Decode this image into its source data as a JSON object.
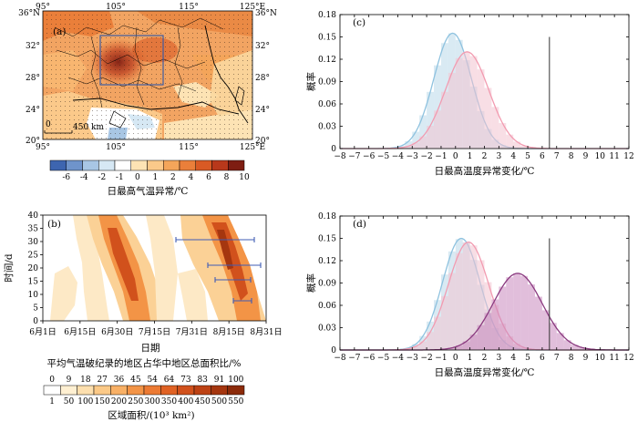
{
  "colors": {
    "hist_c_blue": "#b9d8ea",
    "hist_c_pink": "#f3c3cf",
    "hist_d_purple": "#c889be",
    "curve_blue": "#8ec2df",
    "curve_pink": "#f29bb0",
    "curve_purple": "#8a3a7f",
    "threshold_line": "#333333",
    "scale_warm": [
      "#fde3b4",
      "#fbc98a",
      "#f4a55a",
      "#ea7f3a",
      "#d95a24",
      "#b8381b",
      "#7e1d12"
    ],
    "scale_cool": [
      "#3d65b0",
      "#6f94cb",
      "#a8c6e4",
      "#d6e8f4"
    ],
    "scale_hov": [
      "#ffffff",
      "#fff0d2",
      "#fddfae",
      "#fbc987",
      "#f8b065",
      "#f39446",
      "#ec7a33",
      "#e06224",
      "#d1511c",
      "#bd4214",
      "#a5360f",
      "#8c2b0a"
    ]
  },
  "panel_a": {
    "label": "(a)",
    "lon_top": [
      "95°",
      "105°",
      "115°",
      "125°E"
    ],
    "lon_bottom": [
      "95°",
      "105°",
      "115°",
      "125°E"
    ],
    "lat_left": [
      "36°N",
      "32°",
      "28°",
      "24°",
      "20°"
    ],
    "lat_right": [
      "36°N",
      "32°",
      "28°",
      "24°",
      "20°"
    ],
    "scale_bar_zero": "0",
    "scale_bar_label": "450 km",
    "colorbar_ticks": [
      "-6",
      "-4",
      "-2",
      "-1",
      "0",
      "1",
      "2",
      "4",
      "6",
      "8",
      "10"
    ],
    "colorbar_title": "日最高气温异常/℃"
  },
  "panel_b": {
    "label": "(b)",
    "ylabel": "时间/d",
    "xlabel": "日期",
    "yticks": [
      "0",
      "5",
      "10",
      "15",
      "20",
      "25",
      "30",
      "35",
      "40"
    ],
    "xticks": [
      "6月1日",
      "6月15日",
      "6月30日",
      "7月15日",
      "7月31日",
      "8月15日",
      "8月31日"
    ],
    "colorbar_title1": "平均气温破纪录的地区占华中地区总面积比/%",
    "colorbar_ticks1": [
      "0",
      "9",
      "18",
      "27",
      "36",
      "45",
      "54",
      "64",
      "73",
      "83",
      "91",
      "100"
    ],
    "colorbar_ticks2": [
      "1",
      "50",
      "100",
      "150",
      "200",
      "250",
      "300",
      "350",
      "400",
      "450",
      "500",
      "550"
    ],
    "colorbar_title2": "区域面积/(10³ km²)"
  },
  "chart_data": [
    {
      "panel": "(c)",
      "type": "area",
      "ylabel": "概率",
      "xlabel": "日最高温度异常变化/℃",
      "xlim": [
        -8,
        12
      ],
      "ylim": [
        0,
        0.18
      ],
      "xticks": [
        "−8",
        "−7",
        "−6",
        "−5",
        "−4",
        "−3",
        "−2",
        "−1",
        "0",
        "1",
        "2",
        "3",
        "4",
        "5",
        "6",
        "7",
        "8",
        "9",
        "10",
        "11",
        "12"
      ],
      "yticks": [
        "0",
        "0.03",
        "0.06",
        "0.09",
        "0.12",
        "0.15",
        "0.18"
      ],
      "vline_x": 6.5,
      "series": [
        {
          "color": "blue",
          "mean": -0.2,
          "sd": 1.3,
          "peak": 0.155
        },
        {
          "color": "pink",
          "mean": 0.8,
          "sd": 1.5,
          "peak": 0.13
        }
      ]
    },
    {
      "panel": "(d)",
      "type": "area",
      "ylabel": "概率",
      "xlabel": "日最高温度异常变化/℃",
      "xlim": [
        -8,
        12
      ],
      "ylim": [
        0,
        0.18
      ],
      "xticks": [
        "−8",
        "−7",
        "−6",
        "−5",
        "−4",
        "−3",
        "−2",
        "−1",
        "0",
        "1",
        "2",
        "3",
        "4",
        "5",
        "6",
        "7",
        "8",
        "9",
        "10",
        "11",
        "12"
      ],
      "yticks": [
        "0",
        "0.03",
        "0.06",
        "0.09",
        "0.12",
        "0.15",
        "0.18"
      ],
      "vline_x": 6.5,
      "series": [
        {
          "color": "blue",
          "mean": 0.4,
          "sd": 1.3,
          "peak": 0.15
        },
        {
          "color": "pink",
          "mean": 0.9,
          "sd": 1.4,
          "peak": 0.145
        },
        {
          "color": "purple",
          "mean": 4.3,
          "sd": 1.7,
          "peak": 0.103
        }
      ]
    }
  ]
}
